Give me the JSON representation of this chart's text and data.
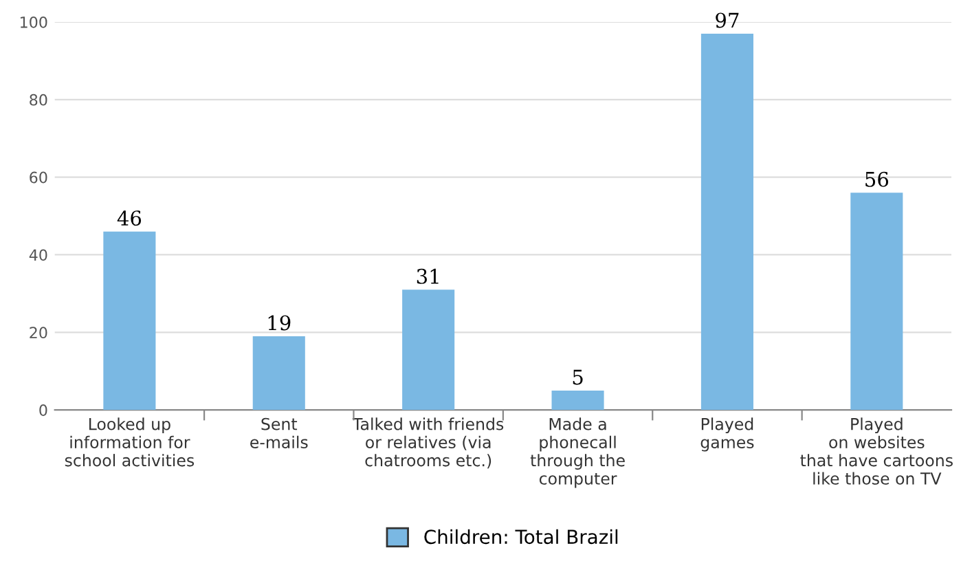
{
  "chart_data": {
    "type": "bar",
    "categories": [
      "Looked up\ninformation for\nschool activities",
      "Sent\ne-mails",
      "Talked with friends\nor relatives (via\nchatrooms etc.)",
      "Made a\nphonecall\nthrough the\ncomputer",
      "Played\ngames",
      "Played\non websites\nthat have cartoons\nlike those on TV"
    ],
    "series": [
      {
        "name": "Children: Total Brazil",
        "color": "#7ab8e3",
        "values": [
          46,
          19,
          31,
          5,
          97,
          56
        ]
      }
    ],
    "ylim": [
      0,
      100
    ],
    "yticks": [
      0,
      20,
      40,
      60,
      80,
      100
    ],
    "grid": "y",
    "data_labels": true,
    "legend": "bottom"
  }
}
